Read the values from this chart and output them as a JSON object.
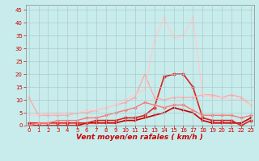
{
  "x": [
    0,
    1,
    2,
    3,
    4,
    5,
    6,
    7,
    8,
    9,
    10,
    11,
    12,
    13,
    14,
    15,
    16,
    17,
    18,
    19,
    20,
    21,
    22,
    23
  ],
  "series": [
    {
      "color": "#cc0000",
      "lw": 1.2,
      "marker": "s",
      "ms": 2.0,
      "values": [
        0,
        0,
        0,
        0,
        0,
        0,
        1,
        1,
        1,
        1,
        2,
        2,
        3,
        4,
        5,
        7,
        6,
        5,
        2,
        1,
        1,
        1,
        1,
        3
      ]
    },
    {
      "color": "#dd2222",
      "lw": 1.2,
      "marker": "o",
      "ms": 2.5,
      "values": [
        1,
        1,
        1,
        1,
        1,
        1,
        1,
        2,
        2,
        2,
        3,
        3,
        4,
        7,
        19,
        20,
        20,
        15,
        3,
        2,
        2,
        2,
        0,
        2
      ]
    },
    {
      "color": "#ff7777",
      "lw": 1.0,
      "marker": "D",
      "ms": 2.0,
      "values": [
        0,
        1,
        1,
        2,
        2,
        2,
        3,
        3,
        4,
        5,
        6,
        7,
        9,
        8,
        7,
        8,
        8,
        6,
        4,
        4,
        4,
        4,
        3,
        4
      ]
    },
    {
      "color": "#ffaaaa",
      "lw": 1.0,
      "marker": "^",
      "ms": 2.0,
      "values": [
        11,
        4,
        4,
        4,
        4,
        5,
        5,
        6,
        7,
        8,
        9,
        11,
        20,
        11,
        10,
        11,
        11,
        11,
        12,
        12,
        11,
        12,
        11,
        8
      ]
    },
    {
      "color": "#ffcccc",
      "lw": 1.0,
      "marker": "v",
      "ms": 2.0,
      "values": [
        4,
        4,
        5,
        5,
        5,
        5,
        6,
        6,
        7,
        8,
        10,
        12,
        14,
        33,
        42,
        34,
        35,
        42,
        12,
        11,
        11,
        10,
        10,
        8
      ]
    }
  ],
  "xlim": [
    -0.3,
    23.3
  ],
  "ylim": [
    0,
    47
  ],
  "yticks": [
    0,
    5,
    10,
    15,
    20,
    25,
    30,
    35,
    40,
    45
  ],
  "xticks": [
    0,
    1,
    2,
    3,
    4,
    5,
    6,
    7,
    8,
    9,
    10,
    11,
    12,
    13,
    14,
    15,
    16,
    17,
    18,
    19,
    20,
    21,
    22,
    23
  ],
  "xlabel": "Vent moyen/en rafales ( km/h )",
  "bg_color": "#c8ecec",
  "grid_color": "#aacccc",
  "xlabel_color": "#cc0000",
  "tick_color": "#cc0000"
}
